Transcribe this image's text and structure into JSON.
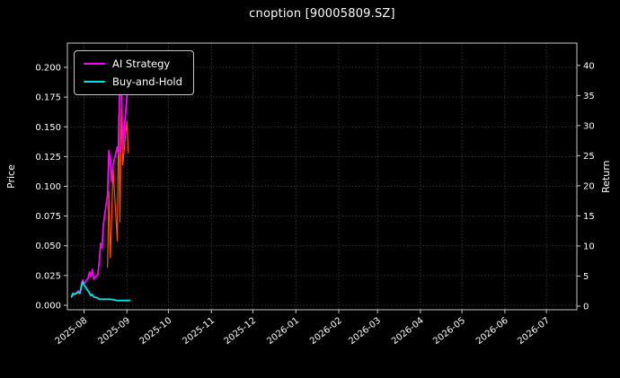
{
  "window": {
    "background": "#000000"
  },
  "chart_data": {
    "type": "line",
    "title": "cnoption [90005809.SZ]",
    "ylabel_left": "Price",
    "ylabel_right": "Return",
    "grid": true,
    "legend_position": "upper left",
    "background": "#000000",
    "x_range": [
      "2025-07-20",
      "2026-07-23"
    ],
    "y_left_range": [
      -0.0038,
      0.2204
    ],
    "y_right_range": [
      -0.6,
      43.7
    ],
    "x_ticks": [
      "2025-08",
      "2025-09",
      "2025-10",
      "2025-11",
      "2025-12",
      "2026-01",
      "2026-02",
      "2026-03",
      "2026-04",
      "2026-05",
      "2026-06",
      "2026-07"
    ],
    "y_left_tick_labels": [
      "0.000",
      "0.025",
      "0.050",
      "0.075",
      "0.100",
      "0.125",
      "0.150",
      "0.175",
      "0.200"
    ],
    "y_right_tick_labels": [
      "0",
      "5",
      "10",
      "15",
      "20",
      "25",
      "30",
      "35",
      "40"
    ],
    "colors": {
      "ai_strategy": "#ff00ff",
      "buy_and_hold": "#00e5e5",
      "price": "#ff5500",
      "grid": "#5f5f5f",
      "spine": "#c8c8c8",
      "text": "#ffffff",
      "background": "#000000"
    },
    "legend": {
      "entries": [
        {
          "label": "AI Strategy",
          "color": "#ff00ff"
        },
        {
          "label": "Buy-and-Hold",
          "color": "#00e5e5"
        }
      ]
    },
    "series": [
      {
        "name": "Price",
        "color": "#ff5500",
        "width": 1.2,
        "in_legend": false,
        "points": [
          [
            "2025-08-18",
            0.032
          ],
          [
            "2025-08-19",
            0.096
          ],
          [
            "2025-08-20",
            0.04
          ],
          [
            "2025-08-21",
            0.074
          ],
          [
            "2025-08-22",
            0.116
          ],
          [
            "2025-08-25",
            0.054
          ],
          [
            "2025-08-26",
            0.16
          ],
          [
            "2025-08-27",
            0.07
          ],
          [
            "2025-08-28",
            0.172
          ],
          [
            "2025-08-29",
            0.118
          ],
          [
            "2025-09-01",
            0.155
          ],
          [
            "2025-09-02",
            0.128
          ]
        ]
      },
      {
        "name": "AI Strategy",
        "color": "#ff00ff",
        "width": 1.8,
        "in_legend": true,
        "points": [
          [
            "2025-07-23",
            0.007
          ],
          [
            "2025-07-24",
            0.01
          ],
          [
            "2025-07-25",
            0.009
          ],
          [
            "2025-07-28",
            0.012
          ],
          [
            "2025-07-29",
            0.01
          ],
          [
            "2025-07-30",
            0.016
          ],
          [
            "2025-07-31",
            0.021
          ],
          [
            "2025-08-01",
            0.018
          ],
          [
            "2025-08-04",
            0.023
          ],
          [
            "2025-08-05",
            0.028
          ],
          [
            "2025-08-06",
            0.024
          ],
          [
            "2025-08-07",
            0.03
          ],
          [
            "2025-08-08",
            0.022
          ],
          [
            "2025-08-11",
            0.026
          ],
          [
            "2025-08-12",
            0.036
          ],
          [
            "2025-08-13",
            0.052
          ],
          [
            "2025-08-14",
            0.048
          ],
          [
            "2025-08-15",
            0.068
          ],
          [
            "2025-08-18",
            0.093
          ],
          [
            "2025-08-19",
            0.13
          ],
          [
            "2025-08-20",
            0.121
          ],
          [
            "2025-08-21",
            0.104
          ],
          [
            "2025-08-22",
            0.118
          ],
          [
            "2025-08-25",
            0.133
          ],
          [
            "2025-08-26",
            0.127
          ],
          [
            "2025-08-27",
            0.205
          ],
          [
            "2025-08-28",
            0.182
          ],
          [
            "2025-08-29",
            0.131
          ],
          [
            "2025-09-01",
            0.176
          ],
          [
            "2025-09-02",
            0.199
          ],
          [
            "2025-09-03",
            0.178
          ]
        ]
      },
      {
        "name": "Buy-and-Hold",
        "color": "#00e5e5",
        "width": 1.8,
        "in_legend": true,
        "points": [
          [
            "2025-07-23",
            0.007
          ],
          [
            "2025-07-24",
            0.01
          ],
          [
            "2025-07-25",
            0.009
          ],
          [
            "2025-07-28",
            0.011
          ],
          [
            "2025-07-29",
            0.01
          ],
          [
            "2025-07-30",
            0.015
          ],
          [
            "2025-07-31",
            0.02
          ],
          [
            "2025-08-01",
            0.017
          ],
          [
            "2025-08-04",
            0.012
          ],
          [
            "2025-08-05",
            0.01
          ],
          [
            "2025-08-06",
            0.008
          ],
          [
            "2025-08-07",
            0.009
          ],
          [
            "2025-08-08",
            0.007
          ],
          [
            "2025-08-11",
            0.006
          ],
          [
            "2025-08-12",
            0.005
          ],
          [
            "2025-08-15",
            0.005
          ],
          [
            "2025-08-20",
            0.005
          ],
          [
            "2025-08-25",
            0.004
          ],
          [
            "2025-09-01",
            0.004
          ],
          [
            "2025-09-03",
            0.004
          ]
        ]
      }
    ]
  }
}
